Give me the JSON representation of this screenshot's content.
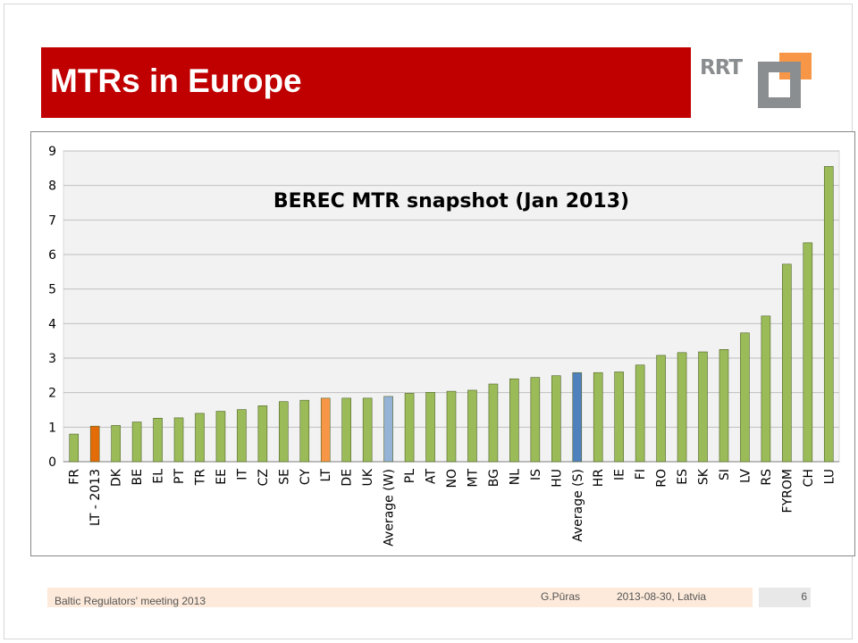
{
  "slide": {
    "title": "MTRs in Europe",
    "logo_text": "RRT",
    "footer_left": "Baltic Regulators' meeting 2013",
    "footer_author": "G.Pūras",
    "footer_date": "2013-08-30,  Latvia",
    "page_number": "6"
  },
  "colors": {
    "title_bg": "#c00000",
    "bar_default": "#9bbb59",
    "bar_lt2013": "#e36c09",
    "bar_lt": "#f79646",
    "bar_average_w": "#95b3d7",
    "bar_average_s": "#4f81bd",
    "plot_bg": "#f2f2f2",
    "logo_orange": "#f79646",
    "logo_grey": "#8b8e90"
  },
  "chart_data": {
    "type": "bar",
    "title": "BEREC MTR snapshot (Jan 2013)",
    "xlabel": "",
    "ylabel": "",
    "ylim": [
      0,
      9
    ],
    "yticks": [
      "0",
      "1",
      "2",
      "3",
      "4",
      "5",
      "6",
      "7",
      "8",
      "9"
    ],
    "grid": "horizontal",
    "categories": [
      "FR",
      "LT - 2013",
      "DK",
      "BE",
      "EL",
      "PT",
      "TR",
      "EE",
      "IT",
      "CZ",
      "SE",
      "CY",
      "LT",
      "DE",
      "UK",
      "Average (W)",
      "PL",
      "AT",
      "NO",
      "MT",
      "BG",
      "NL",
      "IS",
      "HU",
      "Average (S)",
      "HR",
      "IE",
      "FI",
      "RO",
      "ES",
      "SK",
      "SI",
      "LV",
      "RS",
      "FYROM",
      "CH",
      "LU"
    ],
    "values": [
      0.8,
      1.03,
      1.05,
      1.15,
      1.26,
      1.27,
      1.4,
      1.46,
      1.51,
      1.62,
      1.74,
      1.78,
      1.84,
      1.84,
      1.84,
      1.89,
      1.98,
      2.01,
      2.04,
      2.07,
      2.25,
      2.4,
      2.44,
      2.49,
      2.58,
      2.58,
      2.6,
      2.8,
      3.08,
      3.16,
      3.18,
      3.25,
      3.73,
      4.22,
      5.72,
      6.34,
      8.55
    ]
  }
}
